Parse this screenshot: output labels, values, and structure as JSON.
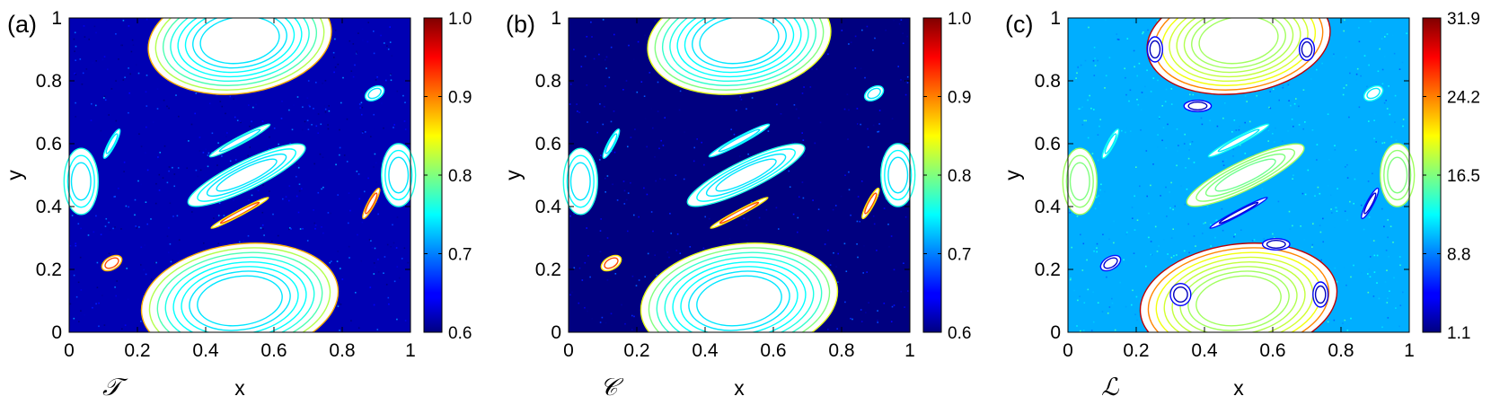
{
  "chart_data": [
    {
      "type": "scatter",
      "panel_label": "(a)",
      "measure_label": "𝒯",
      "xlabel": "x",
      "ylabel": "y",
      "xlim": [
        0,
        1
      ],
      "ylim": [
        0,
        1
      ],
      "xticks": [
        "0",
        "0.2",
        "0.4",
        "0.6",
        "0.8",
        "1"
      ],
      "yticks": [
        "0",
        "0.2",
        "0.4",
        "0.6",
        "0.8",
        "1"
      ],
      "colorbar": {
        "range": [
          0.6,
          1.0
        ],
        "ticks": [
          "0.6",
          "0.7",
          "0.8",
          "0.9",
          "1.0"
        ]
      },
      "background_value": 0.62,
      "islands": [
        {
          "cx": 0.5,
          "cy": 0.93,
          "rx": 0.27,
          "ry": 0.17,
          "rot": -8,
          "ring_values": [
            0.74,
            0.74,
            0.75,
            0.75,
            0.76,
            0.78,
            0.82,
            0.88
          ]
        },
        {
          "cx": 0.5,
          "cy": 0.1,
          "rx": 0.29,
          "ry": 0.18,
          "rot": -8,
          "ring_values": [
            0.74,
            0.74,
            0.75,
            0.75,
            0.76,
            0.78,
            0.82,
            0.88
          ]
        },
        {
          "cx": 0.52,
          "cy": 0.5,
          "rx": 0.19,
          "ry": 0.045,
          "rot": -26,
          "ring_values": [
            0.74,
            0.74,
            0.75,
            0.76
          ]
        },
        {
          "cx": 0.035,
          "cy": 0.48,
          "rx": 0.05,
          "ry": 0.105,
          "rot": 0,
          "ring_values": [
            0.74,
            0.75,
            0.76
          ]
        },
        {
          "cx": 0.965,
          "cy": 0.5,
          "rx": 0.05,
          "ry": 0.1,
          "rot": 0,
          "ring_values": [
            0.74,
            0.75,
            0.76
          ]
        },
        {
          "cx": 0.125,
          "cy": 0.6,
          "rx": 0.048,
          "ry": 0.011,
          "rot": -62,
          "ring_values": [
            0.74,
            0.75
          ]
        },
        {
          "cx": 0.885,
          "cy": 0.41,
          "rx": 0.05,
          "ry": 0.011,
          "rot": -62,
          "ring_values": [
            0.92,
            0.88
          ]
        },
        {
          "cx": 0.5,
          "cy": 0.61,
          "rx": 0.1,
          "ry": 0.012,
          "rot": -28,
          "ring_values": [
            0.74,
            0.76
          ]
        },
        {
          "cx": 0.5,
          "cy": 0.38,
          "rx": 0.095,
          "ry": 0.009,
          "rot": -28,
          "ring_values": [
            0.92,
            0.86
          ]
        },
        {
          "cx": 0.125,
          "cy": 0.22,
          "rx": 0.032,
          "ry": 0.02,
          "rot": -30,
          "ring_values": [
            0.92,
            0.88
          ]
        },
        {
          "cx": 0.895,
          "cy": 0.76,
          "rx": 0.03,
          "ry": 0.02,
          "rot": -30,
          "ring_values": [
            0.74,
            0.75
          ]
        }
      ]
    },
    {
      "type": "scatter",
      "panel_label": "(b)",
      "measure_label": "𝒞",
      "xlabel": "x",
      "ylabel": "y",
      "xlim": [
        0,
        1
      ],
      "ylim": [
        0,
        1
      ],
      "xticks": [
        "0",
        "0.2",
        "0.4",
        "0.6",
        "0.8",
        "1"
      ],
      "yticks": [
        "0",
        "0.2",
        "0.4",
        "0.6",
        "0.8",
        "1"
      ],
      "colorbar": {
        "range": [
          0.6,
          1.0
        ],
        "ticks": [
          "0.6",
          "0.7",
          "0.8",
          "0.9",
          "1.0"
        ]
      },
      "background_value": 0.6,
      "islands": [
        {
          "cx": 0.5,
          "cy": 0.93,
          "rx": 0.27,
          "ry": 0.17,
          "rot": -8,
          "ring_values": [
            0.74,
            0.74,
            0.75,
            0.75,
            0.76,
            0.77,
            0.8,
            0.84
          ]
        },
        {
          "cx": 0.5,
          "cy": 0.1,
          "rx": 0.29,
          "ry": 0.18,
          "rot": -8,
          "ring_values": [
            0.74,
            0.74,
            0.75,
            0.75,
            0.76,
            0.77,
            0.8,
            0.84
          ]
        },
        {
          "cx": 0.52,
          "cy": 0.5,
          "rx": 0.19,
          "ry": 0.045,
          "rot": -26,
          "ring_values": [
            0.74,
            0.74,
            0.75,
            0.76
          ]
        },
        {
          "cx": 0.035,
          "cy": 0.48,
          "rx": 0.05,
          "ry": 0.105,
          "rot": 0,
          "ring_values": [
            0.74,
            0.75,
            0.76
          ]
        },
        {
          "cx": 0.965,
          "cy": 0.5,
          "rx": 0.05,
          "ry": 0.1,
          "rot": 0,
          "ring_values": [
            0.74,
            0.75,
            0.76
          ]
        },
        {
          "cx": 0.125,
          "cy": 0.6,
          "rx": 0.048,
          "ry": 0.011,
          "rot": -62,
          "ring_values": [
            0.74,
            0.75
          ]
        },
        {
          "cx": 0.885,
          "cy": 0.41,
          "rx": 0.05,
          "ry": 0.011,
          "rot": -62,
          "ring_values": [
            0.92,
            0.86
          ]
        },
        {
          "cx": 0.5,
          "cy": 0.61,
          "rx": 0.1,
          "ry": 0.012,
          "rot": -28,
          "ring_values": [
            0.74,
            0.75
          ]
        },
        {
          "cx": 0.5,
          "cy": 0.38,
          "rx": 0.095,
          "ry": 0.009,
          "rot": -28,
          "ring_values": [
            0.92,
            0.86
          ]
        },
        {
          "cx": 0.125,
          "cy": 0.22,
          "rx": 0.032,
          "ry": 0.02,
          "rot": -30,
          "ring_values": [
            0.92,
            0.86
          ]
        },
        {
          "cx": 0.895,
          "cy": 0.76,
          "rx": 0.03,
          "ry": 0.02,
          "rot": -30,
          "ring_values": [
            0.74,
            0.75
          ]
        }
      ]
    },
    {
      "type": "scatter",
      "panel_label": "(c)",
      "measure_label": "ℒ",
      "xlabel": "x",
      "ylabel": "y",
      "xlim": [
        0,
        1
      ],
      "ylim": [
        0,
        1
      ],
      "xticks": [
        "0",
        "0.2",
        "0.4",
        "0.6",
        "0.8",
        "1"
      ],
      "yticks": [
        "0",
        "0.2",
        "0.4",
        "0.6",
        "0.8",
        "1"
      ],
      "colorbar": {
        "range": [
          1.1,
          31.9
        ],
        "ticks": [
          "1.1",
          "8.8",
          "16.5",
          "24.2",
          "31.9"
        ]
      },
      "background_value": 10.2,
      "islands": [
        {
          "cx": 0.5,
          "cy": 0.93,
          "rx": 0.27,
          "ry": 0.17,
          "rot": -8,
          "ring_values": [
            17.5,
            17.5,
            18.0,
            18.5,
            19.0,
            20.0,
            24.0,
            30.0
          ]
        },
        {
          "cx": 0.5,
          "cy": 0.1,
          "rx": 0.29,
          "ry": 0.18,
          "rot": -8,
          "ring_values": [
            17.5,
            17.5,
            18.0,
            18.5,
            19.0,
            20.0,
            24.0,
            30.0
          ]
        },
        {
          "cx": 0.52,
          "cy": 0.5,
          "rx": 0.19,
          "ry": 0.045,
          "rot": -26,
          "ring_values": [
            16.0,
            16.5,
            17.0,
            17.5
          ]
        },
        {
          "cx": 0.035,
          "cy": 0.48,
          "rx": 0.05,
          "ry": 0.105,
          "rot": 0,
          "ring_values": [
            16.5,
            17.0,
            17.5
          ]
        },
        {
          "cx": 0.965,
          "cy": 0.5,
          "rx": 0.05,
          "ry": 0.1,
          "rot": 0,
          "ring_values": [
            16.5,
            17.0,
            17.5
          ]
        },
        {
          "cx": 0.125,
          "cy": 0.6,
          "rx": 0.048,
          "ry": 0.011,
          "rot": -62,
          "ring_values": [
            12.0,
            13.0
          ]
        },
        {
          "cx": 0.885,
          "cy": 0.41,
          "rx": 0.05,
          "ry": 0.011,
          "rot": -62,
          "ring_values": [
            3.5,
            5.5
          ]
        },
        {
          "cx": 0.5,
          "cy": 0.61,
          "rx": 0.1,
          "ry": 0.012,
          "rot": -28,
          "ring_values": [
            12.0,
            13.0
          ]
        },
        {
          "cx": 0.5,
          "cy": 0.38,
          "rx": 0.095,
          "ry": 0.009,
          "rot": -28,
          "ring_values": [
            3.5,
            5.5
          ]
        },
        {
          "cx": 0.125,
          "cy": 0.22,
          "rx": 0.032,
          "ry": 0.02,
          "rot": -30,
          "ring_values": [
            3.5,
            5.5
          ]
        },
        {
          "cx": 0.895,
          "cy": 0.76,
          "rx": 0.03,
          "ry": 0.02,
          "rot": -30,
          "ring_values": [
            12.0,
            13.0
          ]
        },
        {
          "cx": 0.255,
          "cy": 0.9,
          "rx": 0.022,
          "ry": 0.04,
          "rot": 0,
          "ring_values": [
            3.0,
            5.0
          ]
        },
        {
          "cx": 0.38,
          "cy": 0.72,
          "rx": 0.04,
          "ry": 0.018,
          "rot": 0,
          "ring_values": [
            3.0,
            5.0
          ]
        },
        {
          "cx": 0.74,
          "cy": 0.12,
          "rx": 0.022,
          "ry": 0.04,
          "rot": 0,
          "ring_values": [
            3.0,
            5.0
          ]
        },
        {
          "cx": 0.61,
          "cy": 0.28,
          "rx": 0.04,
          "ry": 0.018,
          "rot": 0,
          "ring_values": [
            3.0,
            5.0
          ]
        },
        {
          "cx": 0.7,
          "cy": 0.9,
          "rx": 0.022,
          "ry": 0.035,
          "rot": 0,
          "ring_values": [
            3.0,
            5.0
          ]
        },
        {
          "cx": 0.33,
          "cy": 0.12,
          "rx": 0.03,
          "ry": 0.035,
          "rot": 0,
          "ring_values": [
            3.0,
            5.0
          ]
        }
      ]
    }
  ]
}
